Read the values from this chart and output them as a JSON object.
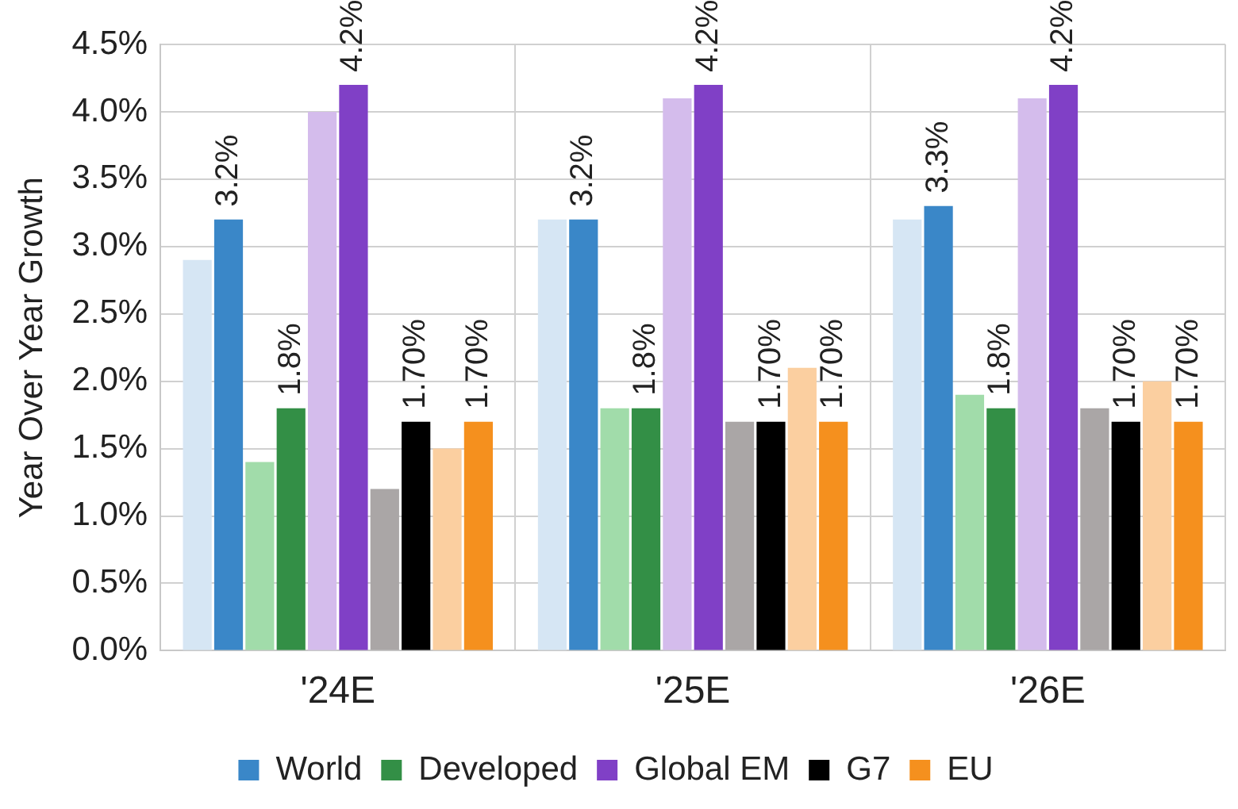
{
  "chart_data": {
    "type": "bar",
    "ylabel": "Year Over Year Growth",
    "categories": [
      "'24E",
      "'25E",
      "'26E"
    ],
    "series": [
      {
        "color": "#d6e6f4",
        "values": [
          2.9,
          3.2,
          3.2
        ]
      },
      {
        "name": "World",
        "color": "#3a87c8",
        "values": [
          3.2,
          3.2,
          3.3
        ],
        "value_labels": [
          "3.2%",
          "3.2%",
          "3.3%"
        ]
      },
      {
        "color": "#a1dcaa",
        "values": [
          1.4,
          1.8,
          1.9
        ]
      },
      {
        "name": "Developed",
        "color": "#338f46",
        "values": [
          1.8,
          1.8,
          1.8
        ],
        "value_labels": [
          "1.8%",
          "1.8%",
          "1.8%"
        ]
      },
      {
        "color": "#d4bcec",
        "values": [
          4.0,
          4.1,
          4.1
        ]
      },
      {
        "name": "Global EM",
        "color": "#8040c6",
        "values": [
          4.2,
          4.2,
          4.2
        ],
        "value_labels": [
          "4.2%",
          "4.2%",
          "4.2%"
        ]
      },
      {
        "color": "#aaa6a6",
        "values": [
          1.2,
          1.7,
          1.8
        ]
      },
      {
        "name": "G7",
        "color": "#000000",
        "values": [
          1.7,
          1.7,
          1.7
        ],
        "value_labels": [
          "1.70%",
          "1.70%",
          "1.70%"
        ]
      },
      {
        "color": "#fbcfa0",
        "values": [
          1.5,
          2.1,
          2.0
        ]
      },
      {
        "name": "EU",
        "color": "#f5901e",
        "values": [
          1.7,
          1.7,
          1.7
        ],
        "value_labels": [
          "1.70%",
          "1.70%",
          "1.70%"
        ]
      }
    ],
    "ylim": [
      0,
      4.5
    ],
    "yticks": [
      {
        "value": 0,
        "label": "0.0%"
      },
      {
        "value": 0.5,
        "label": "0.5%"
      },
      {
        "value": 1,
        "label": "1.0%"
      },
      {
        "value": 1.5,
        "label": "1.5%"
      },
      {
        "value": 2,
        "label": "2.0%"
      },
      {
        "value": 2.5,
        "label": "2.5%"
      },
      {
        "value": 3,
        "label": "3.0%"
      },
      {
        "value": 3.5,
        "label": "3.5%"
      },
      {
        "value": 4,
        "label": "4.0%"
      },
      {
        "value": 4.5,
        "label": "4.5%"
      }
    ],
    "grid": true,
    "legend": "bottom"
  }
}
